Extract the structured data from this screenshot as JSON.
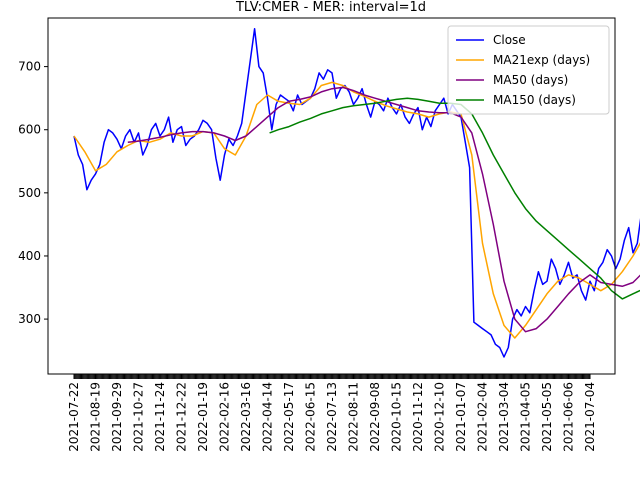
{
  "chart_data": {
    "type": "line",
    "title": "TLV:CMER - MER: interval=1d",
    "xlabel": "",
    "ylabel": "",
    "ylim": [
      213,
      777
    ],
    "yticks": [
      300,
      400,
      500,
      600,
      700
    ],
    "grid": false,
    "legend_position": "top-right",
    "x_tick_labels": [
      "2021-07-22",
      "2021-08-19",
      "2021-09-29",
      "2021-10-27",
      "2021-11-24",
      "2021-12-22",
      "2022-01-19",
      "2022-02-16",
      "2022-03-16",
      "2022-04-14",
      "2022-05-17",
      "2022-06-15",
      "2022-07-13",
      "2022-08-11",
      "2022-09-08",
      "2020-10-15",
      "2020-11-12",
      "2020-12-10",
      "2021-01-07",
      "2021-02-04",
      "2021-03-04",
      "2021-04-05",
      "2021-05-05",
      "2021-06-06",
      "2021-07-04"
    ],
    "series": [
      {
        "name": "Close",
        "color": "#0000ff",
        "values": [
          [
            0,
            590
          ],
          [
            0.2,
            560
          ],
          [
            0.4,
            545
          ],
          [
            0.6,
            505
          ],
          [
            0.8,
            520
          ],
          [
            1,
            530
          ],
          [
            1.2,
            545
          ],
          [
            1.4,
            580
          ],
          [
            1.6,
            600
          ],
          [
            1.8,
            595
          ],
          [
            2,
            585
          ],
          [
            2.2,
            570
          ],
          [
            2.4,
            590
          ],
          [
            2.6,
            600
          ],
          [
            2.8,
            580
          ],
          [
            3,
            595
          ],
          [
            3.2,
            560
          ],
          [
            3.4,
            575
          ],
          [
            3.6,
            600
          ],
          [
            3.8,
            610
          ],
          [
            4,
            590
          ],
          [
            4.2,
            600
          ],
          [
            4.4,
            620
          ],
          [
            4.6,
            580
          ],
          [
            4.8,
            600
          ],
          [
            5,
            605
          ],
          [
            5.2,
            575
          ],
          [
            5.4,
            585
          ],
          [
            5.6,
            590
          ],
          [
            5.8,
            600
          ],
          [
            6,
            615
          ],
          [
            6.2,
            610
          ],
          [
            6.4,
            600
          ],
          [
            6.6,
            555
          ],
          [
            6.8,
            520
          ],
          [
            7,
            560
          ],
          [
            7.2,
            585
          ],
          [
            7.4,
            575
          ],
          [
            7.6,
            590
          ],
          [
            7.8,
            610
          ],
          [
            8,
            660
          ],
          [
            8.2,
            710
          ],
          [
            8.4,
            760
          ],
          [
            8.6,
            700
          ],
          [
            8.8,
            690
          ],
          [
            9,
            650
          ],
          [
            9.2,
            600
          ],
          [
            9.4,
            640
          ],
          [
            9.6,
            655
          ],
          [
            9.8,
            650
          ],
          [
            10,
            645
          ],
          [
            10.2,
            630
          ],
          [
            10.4,
            655
          ],
          [
            10.6,
            640
          ],
          [
            10.8,
            645
          ],
          [
            11,
            650
          ],
          [
            11.2,
            665
          ],
          [
            11.4,
            690
          ],
          [
            11.6,
            680
          ],
          [
            11.8,
            695
          ],
          [
            12,
            690
          ],
          [
            12.2,
            650
          ],
          [
            12.4,
            665
          ],
          [
            12.6,
            670
          ],
          [
            12.8,
            660
          ],
          [
            13,
            640
          ],
          [
            13.2,
            650
          ],
          [
            13.4,
            665
          ],
          [
            13.6,
            640
          ],
          [
            13.8,
            620
          ],
          [
            14,
            645
          ],
          [
            14.2,
            640
          ],
          [
            14.4,
            630
          ],
          [
            14.6,
            650
          ],
          [
            14.8,
            635
          ],
          [
            15,
            625
          ],
          [
            15.2,
            640
          ],
          [
            15.4,
            620
          ],
          [
            15.6,
            610
          ],
          [
            15.8,
            625
          ],
          [
            16,
            635
          ],
          [
            16.2,
            600
          ],
          [
            16.4,
            620
          ],
          [
            16.6,
            605
          ],
          [
            16.8,
            630
          ],
          [
            17,
            640
          ],
          [
            17.2,
            650
          ],
          [
            17.4,
            625
          ],
          [
            17.6,
            640
          ],
          [
            17.8,
            630
          ],
          [
            18,
            620
          ],
          [
            18.2,
            580
          ],
          [
            18.4,
            540
          ],
          [
            18.6,
            295
          ],
          [
            18.8,
            290
          ],
          [
            19,
            285
          ],
          [
            19.2,
            280
          ],
          [
            19.4,
            275
          ],
          [
            19.6,
            260
          ],
          [
            19.8,
            255
          ],
          [
            20,
            240
          ],
          [
            20.2,
            255
          ],
          [
            20.4,
            300
          ],
          [
            20.6,
            315
          ],
          [
            20.8,
            305
          ],
          [
            21,
            320
          ],
          [
            21.2,
            310
          ],
          [
            21.4,
            345
          ],
          [
            21.6,
            375
          ],
          [
            21.8,
            355
          ],
          [
            22,
            360
          ],
          [
            22.2,
            395
          ],
          [
            22.4,
            380
          ],
          [
            22.6,
            355
          ],
          [
            22.8,
            370
          ],
          [
            23,
            390
          ],
          [
            23.2,
            365
          ],
          [
            23.4,
            370
          ],
          [
            23.6,
            345
          ],
          [
            23.8,
            330
          ],
          [
            24,
            360
          ],
          [
            24.2,
            345
          ],
          [
            24.4,
            380
          ],
          [
            24.6,
            390
          ],
          [
            24.8,
            410
          ],
          [
            25,
            400
          ],
          [
            25.2,
            380
          ],
          [
            25.4,
            395
          ],
          [
            25.6,
            425
          ],
          [
            25.8,
            445
          ],
          [
            26,
            405
          ],
          [
            26.2,
            420
          ],
          [
            26.4,
            470
          ],
          [
            26.6,
            500
          ],
          [
            26.8,
            515
          ],
          [
            27,
            530
          ],
          [
            27.2,
            575
          ]
        ]
      },
      {
        "name": "MA21exp (days)",
        "color": "#ffa500",
        "values": [
          [
            0,
            590
          ],
          [
            0.5,
            565
          ],
          [
            1,
            535
          ],
          [
            1.5,
            545
          ],
          [
            2,
            565
          ],
          [
            2.5,
            575
          ],
          [
            3,
            583
          ],
          [
            3.5,
            580
          ],
          [
            4,
            585
          ],
          [
            4.5,
            595
          ],
          [
            5,
            590
          ],
          [
            5.5,
            590
          ],
          [
            6,
            597
          ],
          [
            6.5,
            595
          ],
          [
            7,
            570
          ],
          [
            7.5,
            560
          ],
          [
            8,
            590
          ],
          [
            8.5,
            640
          ],
          [
            9,
            655
          ],
          [
            9.5,
            645
          ],
          [
            10,
            642
          ],
          [
            10.5,
            640
          ],
          [
            11,
            650
          ],
          [
            11.5,
            670
          ],
          [
            12,
            675
          ],
          [
            12.5,
            670
          ],
          [
            13,
            660
          ],
          [
            13.5,
            653
          ],
          [
            14,
            645
          ],
          [
            14.5,
            638
          ],
          [
            15,
            633
          ],
          [
            15.5,
            628
          ],
          [
            16,
            625
          ],
          [
            16.5,
            620
          ],
          [
            17,
            625
          ],
          [
            17.5,
            628
          ],
          [
            18,
            625
          ],
          [
            18.5,
            560
          ],
          [
            19,
            420
          ],
          [
            19.5,
            340
          ],
          [
            20,
            290
          ],
          [
            20.5,
            270
          ],
          [
            21,
            290
          ],
          [
            21.5,
            315
          ],
          [
            22,
            340
          ],
          [
            22.5,
            360
          ],
          [
            23,
            370
          ],
          [
            23.5,
            365
          ],
          [
            24,
            355
          ],
          [
            24.5,
            345
          ],
          [
            25,
            355
          ],
          [
            25.5,
            375
          ],
          [
            26,
            400
          ],
          [
            26.5,
            430
          ],
          [
            27,
            455
          ],
          [
            27.2,
            478
          ]
        ]
      },
      {
        "name": "MA50 (days)",
        "color": "#800080",
        "values": [
          [
            2.5,
            580
          ],
          [
            3,
            582
          ],
          [
            3.5,
            585
          ],
          [
            4,
            588
          ],
          [
            4.5,
            592
          ],
          [
            5,
            595
          ],
          [
            5.5,
            597
          ],
          [
            6,
            597
          ],
          [
            6.5,
            595
          ],
          [
            7,
            590
          ],
          [
            7.5,
            583
          ],
          [
            8,
            590
          ],
          [
            8.5,
            605
          ],
          [
            9,
            620
          ],
          [
            9.5,
            635
          ],
          [
            10,
            645
          ],
          [
            10.5,
            648
          ],
          [
            11,
            652
          ],
          [
            11.5,
            660
          ],
          [
            12,
            665
          ],
          [
            12.5,
            667
          ],
          [
            13,
            662
          ],
          [
            13.5,
            655
          ],
          [
            14,
            650
          ],
          [
            14.5,
            645
          ],
          [
            15,
            640
          ],
          [
            15.5,
            635
          ],
          [
            16,
            630
          ],
          [
            16.5,
            628
          ],
          [
            17,
            627
          ],
          [
            17.5,
            627
          ],
          [
            18,
            620
          ],
          [
            18.5,
            595
          ],
          [
            19,
            530
          ],
          [
            19.5,
            450
          ],
          [
            20,
            360
          ],
          [
            20.5,
            300
          ],
          [
            21,
            280
          ],
          [
            21.5,
            285
          ],
          [
            22,
            300
          ],
          [
            22.5,
            320
          ],
          [
            23,
            340
          ],
          [
            23.5,
            358
          ],
          [
            24,
            370
          ],
          [
            24.5,
            358
          ],
          [
            25,
            355
          ],
          [
            25.5,
            352
          ],
          [
            26,
            358
          ],
          [
            26.5,
            375
          ],
          [
            27,
            400
          ],
          [
            27.2,
            420
          ]
        ]
      },
      {
        "name": "MA150 (days)",
        "color": "#008000",
        "values": [
          [
            9.1,
            595
          ],
          [
            9.5,
            600
          ],
          [
            10,
            605
          ],
          [
            10.5,
            612
          ],
          [
            11,
            618
          ],
          [
            11.5,
            625
          ],
          [
            12,
            630
          ],
          [
            12.5,
            635
          ],
          [
            13,
            638
          ],
          [
            13.5,
            640
          ],
          [
            14,
            642
          ],
          [
            14.5,
            645
          ],
          [
            15,
            648
          ],
          [
            15.5,
            650
          ],
          [
            16,
            648
          ],
          [
            16.5,
            645
          ],
          [
            17,
            642
          ],
          [
            17.5,
            642
          ],
          [
            18,
            640
          ],
          [
            18.5,
            625
          ],
          [
            19,
            595
          ],
          [
            19.5,
            560
          ],
          [
            20,
            530
          ],
          [
            20.5,
            500
          ],
          [
            21,
            475
          ],
          [
            21.5,
            455
          ],
          [
            22,
            440
          ],
          [
            22.5,
            425
          ],
          [
            23,
            410
          ],
          [
            23.5,
            395
          ],
          [
            24,
            380
          ],
          [
            24.5,
            365
          ],
          [
            25,
            345
          ],
          [
            25.5,
            332
          ],
          [
            26,
            340
          ],
          [
            26.5,
            348
          ],
          [
            27,
            360
          ],
          [
            27.2,
            370
          ]
        ]
      }
    ]
  }
}
